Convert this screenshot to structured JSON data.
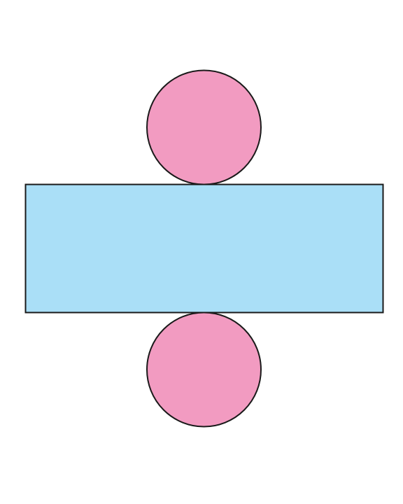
{
  "diagram": {
    "kind": "cylinder-net",
    "parts": [
      {
        "id": "top-base",
        "shape": "circle"
      },
      {
        "id": "lateral-surface",
        "shape": "rectangle"
      },
      {
        "id": "bottom-base",
        "shape": "circle"
      }
    ]
  },
  "colors": {
    "background": "#ffffff",
    "circle_fill": "#f29bc1",
    "rectangle_fill": "#aadff7",
    "outline": "#1a1a1a"
  }
}
